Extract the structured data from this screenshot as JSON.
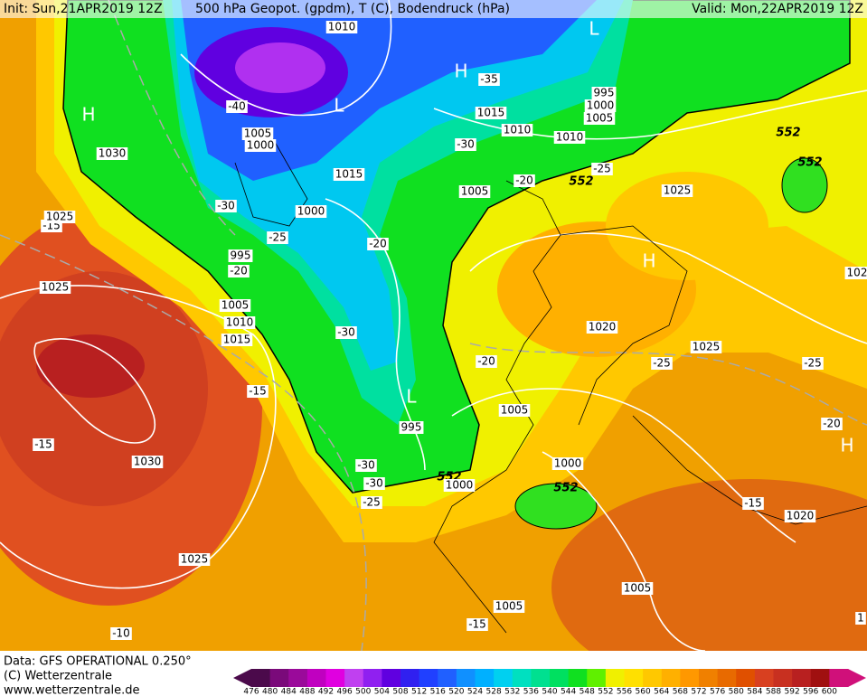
{
  "header": {
    "init": "Init: Sun,21APR2019 12Z",
    "title": "500 hPa Geopot. (gpdm), T (C), Bodendruck (hPa)",
    "valid": "Valid: Mon,22APR2019 12Z"
  },
  "footer": {
    "lines": [
      "Data: GFS OPERATIONAL 0.250°",
      "(C) Wetterzentrale",
      "www.wetterzentrale.de"
    ]
  },
  "colorbar": {
    "ticks": [
      476,
      480,
      484,
      488,
      492,
      496,
      500,
      504,
      508,
      512,
      516,
      520,
      524,
      528,
      532,
      536,
      540,
      544,
      548,
      552,
      556,
      560,
      564,
      568,
      572,
      576,
      580,
      584,
      588,
      592,
      596,
      600
    ],
    "colors": [
      "#4b0a4b",
      "#7a0a7a",
      "#9a0a9a",
      "#c000c0",
      "#e000e0",
      "#c040f0",
      "#9020f0",
      "#6000e0",
      "#3020f0",
      "#2040ff",
      "#2060ff",
      "#1090ff",
      "#00b0ff",
      "#00d0f0",
      "#00e0c0",
      "#00e090",
      "#00e060",
      "#10e020",
      "#60f000",
      "#f0f000",
      "#ffe000",
      "#ffc800",
      "#ffb000",
      "#ff9800",
      "#f08000",
      "#e86a00",
      "#e05000",
      "#d84020",
      "#c83020",
      "#b82020",
      "#a01010",
      "#d0107a"
    ]
  },
  "map": {
    "labels": [
      "1010",
      "H",
      "-35",
      "L",
      "1015",
      "-40",
      "1005",
      "1000",
      "L",
      "1015",
      "-30",
      "1010",
      "1010",
      "995",
      "1000",
      "1005",
      "H",
      "1030",
      "-30",
      "-25",
      "1005",
      "-20",
      "552",
      "552",
      "-25",
      "1025",
      "-20",
      "552",
      "-15",
      "1025",
      "1000",
      "995",
      "-20",
      "H",
      "1025",
      "1020",
      "1025",
      "-25",
      "-25",
      "-20",
      "1005",
      "-30",
      "-15",
      "1005",
      "1010",
      "1015",
      "-30",
      "L",
      "995",
      "-15",
      "1030",
      "-30",
      "-25",
      "-20",
      "552",
      "1000",
      "1000",
      "552",
      "-15",
      "1020",
      "H",
      "1025",
      "-10",
      "1005",
      "1005",
      "-15",
      "102",
      "1"
    ]
  }
}
